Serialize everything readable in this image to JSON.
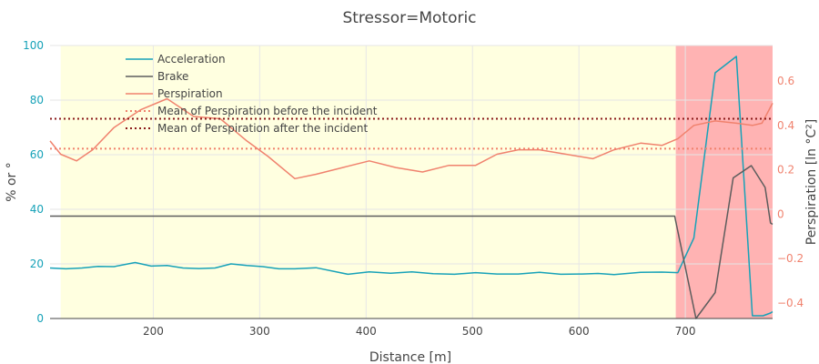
{
  "chart_data": {
    "type": "line",
    "title": "Stressor=Motoric",
    "xlabel": "Distance [m]",
    "ylabel_left": "% or °",
    "ylabel_right": "Perspiration [ln °C²]",
    "xlim": [
      103,
      782
    ],
    "ylim_left": [
      0,
      100
    ],
    "ylim_right": [
      -0.47,
      0.76
    ],
    "xticks": [
      200,
      300,
      400,
      500,
      600,
      700
    ],
    "yticks_left": [
      0,
      20,
      40,
      60,
      80,
      100
    ],
    "yticks_right": [
      -0.4,
      -0.2,
      0,
      0.2,
      0.4,
      0.6
    ],
    "yticklabels_right": [
      "−0.4",
      "−0.2",
      "0",
      "0.2",
      "0.4",
      "0.6"
    ],
    "grid": true,
    "legend_position": "top-left",
    "regions": [
      {
        "kind": "before-incident",
        "x0": 113,
        "x1": 691,
        "color": "#FFFFE0"
      },
      {
        "kind": "incident",
        "x0": 691,
        "x1": 782,
        "color": "#FFB3B3"
      }
    ],
    "series": [
      {
        "name": "Acceleration",
        "axis": "left",
        "color": "#17A2B8",
        "x": [
          103,
          118,
          133,
          148,
          163,
          183,
          198,
          213,
          228,
          243,
          258,
          273,
          288,
          303,
          318,
          333,
          353,
          383,
          403,
          423,
          443,
          463,
          483,
          503,
          523,
          543,
          563,
          583,
          603,
          618,
          633,
          658,
          678,
          693,
          708,
          728,
          748,
          763,
          773,
          780,
          782
        ],
        "y": [
          18.5,
          18.2,
          18.5,
          19.1,
          19,
          20.5,
          19.2,
          19.4,
          18.5,
          18.3,
          18.5,
          20,
          19.4,
          19,
          18.2,
          18.2,
          18.6,
          16.2,
          17.1,
          16.6,
          17.1,
          16.4,
          16.2,
          16.8,
          16.3,
          16.3,
          16.9,
          16.2,
          16.3,
          16.5,
          16.1,
          16.9,
          17,
          16.8,
          29.5,
          90,
          96,
          1,
          1,
          2,
          2.5
        ]
      },
      {
        "name": "Brake",
        "axis": "left",
        "color": "#5D5D5D",
        "x": [
          103,
          690,
          710,
          728,
          745,
          762,
          775,
          780,
          782
        ],
        "y": [
          37.5,
          37.5,
          0,
          9.5,
          51.5,
          56,
          48,
          35,
          34.5
        ]
      },
      {
        "name": "Perspiration",
        "axis": "right",
        "color": "#F0826E",
        "x": [
          103,
          113,
          128,
          143,
          163,
          188,
          213,
          238,
          263,
          288,
          308,
          333,
          353,
          378,
          403,
          428,
          453,
          478,
          503,
          523,
          543,
          563,
          588,
          613,
          633,
          658,
          678,
          693,
          708,
          728,
          748,
          763,
          772,
          782
        ],
        "y": [
          0.33,
          0.27,
          0.24,
          0.29,
          0.39,
          0.47,
          0.52,
          0.44,
          0.43,
          0.33,
          0.26,
          0.16,
          0.18,
          0.21,
          0.24,
          0.21,
          0.19,
          0.22,
          0.22,
          0.27,
          0.29,
          0.29,
          0.27,
          0.25,
          0.29,
          0.32,
          0.31,
          0.34,
          0.4,
          0.42,
          0.41,
          0.4,
          0.41,
          0.5
        ]
      },
      {
        "name": "Mean of Perspiration before the incident",
        "axis": "right",
        "style": "dotted",
        "color": "#F0826E",
        "value": 0.295
      },
      {
        "name": "Mean of Perspiration after the incident",
        "axis": "right",
        "style": "dotted",
        "color": "#8B1A1A",
        "value": 0.43
      }
    ]
  }
}
